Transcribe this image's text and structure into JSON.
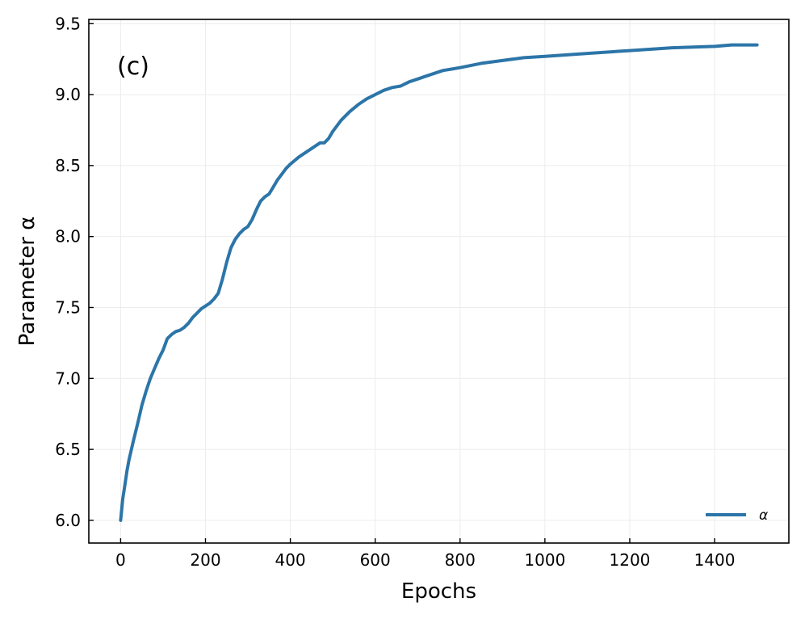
{
  "chart_data": {
    "type": "line",
    "panel_label": "(c)",
    "xlabel": "Epochs",
    "ylabel": "Parameter α",
    "xlim": [
      -75,
      1575
    ],
    "ylim": [
      5.84,
      9.53
    ],
    "x_ticks": [
      0,
      200,
      400,
      600,
      800,
      1000,
      1200,
      1400
    ],
    "y_ticks": [
      6.0,
      6.5,
      7.0,
      7.5,
      8.0,
      8.5,
      9.0,
      9.5
    ],
    "x_tick_labels": [
      "0",
      "200",
      "400",
      "600",
      "800",
      "1000",
      "1200",
      "1400"
    ],
    "y_tick_labels": [
      "6.0",
      "6.5",
      "7.0",
      "7.5",
      "8.0",
      "8.5",
      "9.0",
      "9.5"
    ],
    "grid": true,
    "legend_position": "bottom-right",
    "series": [
      {
        "name": "α",
        "color": "#2c75a8",
        "x": [
          0,
          5,
          10,
          15,
          20,
          30,
          40,
          50,
          60,
          70,
          80,
          90,
          100,
          110,
          120,
          130,
          140,
          150,
          160,
          170,
          180,
          190,
          200,
          210,
          220,
          230,
          240,
          250,
          260,
          270,
          280,
          290,
          300,
          310,
          320,
          330,
          340,
          350,
          360,
          370,
          380,
          390,
          400,
          420,
          440,
          460,
          470,
          480,
          490,
          500,
          520,
          540,
          560,
          580,
          600,
          620,
          640,
          660,
          680,
          700,
          720,
          740,
          760,
          780,
          800,
          850,
          900,
          950,
          1000,
          1100,
          1200,
          1300,
          1400,
          1440,
          1500
        ],
        "y": [
          6.0,
          6.15,
          6.25,
          6.35,
          6.43,
          6.56,
          6.68,
          6.81,
          6.91,
          7.0,
          7.07,
          7.14,
          7.2,
          7.28,
          7.31,
          7.33,
          7.34,
          7.36,
          7.39,
          7.43,
          7.46,
          7.49,
          7.51,
          7.53,
          7.56,
          7.6,
          7.7,
          7.82,
          7.92,
          7.98,
          8.02,
          8.05,
          8.07,
          8.12,
          8.19,
          8.25,
          8.28,
          8.3,
          8.35,
          8.4,
          8.44,
          8.48,
          8.51,
          8.56,
          8.6,
          8.64,
          8.66,
          8.66,
          8.69,
          8.74,
          8.82,
          8.88,
          8.93,
          8.97,
          9.0,
          9.03,
          9.05,
          9.06,
          9.09,
          9.11,
          9.13,
          9.15,
          9.17,
          9.18,
          9.19,
          9.22,
          9.24,
          9.26,
          9.27,
          9.29,
          9.31,
          9.33,
          9.34,
          9.35,
          9.35
        ]
      }
    ]
  }
}
